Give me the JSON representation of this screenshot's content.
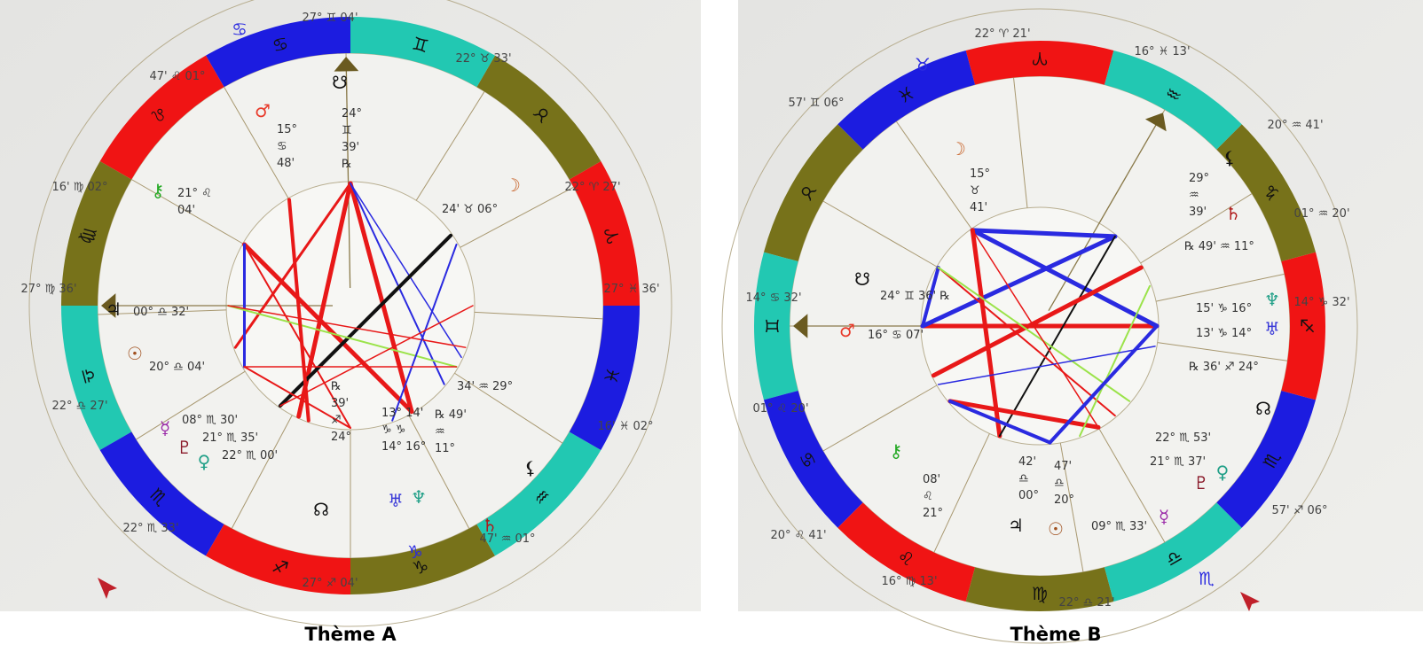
{
  "titles": [
    "Thème A",
    "Thème B"
  ],
  "colors": {
    "fire": "#f01414",
    "earth": "#77721a",
    "air": "#22c8b2",
    "water": "#1c1ce0",
    "background": "#e9e9e6"
  },
  "signs": [
    "♈",
    "♉",
    "♊",
    "♋",
    "♌",
    "♍",
    "♎",
    "♏",
    "♐",
    "♑",
    "♒",
    "♓"
  ],
  "charts": [
    {
      "name": "Thème A",
      "cusps": [
        "27° ♊ 04'",
        "22° ♉ 33'",
        "22° ♈ 27'",
        "27° ♓ 36'",
        "16' ♓ 02°",
        "47' ♒ 01°",
        "27° ♐ 04'",
        "22° ♏ 33'",
        "22° ♎ 27'",
        "27° ♍ 36'",
        "16' ♍ 02°",
        "47' ♌ 01°"
      ],
      "intercepted": [
        "♋",
        "♑"
      ],
      "planets": [
        {
          "glyph": "☋",
          "color": "#111111",
          "lines": [
            "24°",
            "♊",
            "39'",
            "℞"
          ]
        },
        {
          "glyph": "♂",
          "color": "#e83a2a",
          "lines": [
            "15°",
            "♋",
            "48'"
          ]
        },
        {
          "glyph": "⚷",
          "color": "#22a822",
          "lines": [
            "21° ♌",
            "04'"
          ]
        },
        {
          "glyph": "☽",
          "color": "#c8642a",
          "lines": [
            "24' ♉ 06°"
          ]
        },
        {
          "glyph": "♃",
          "color": "#111111",
          "lines": [
            "00° ♎ 32'"
          ]
        },
        {
          "glyph": "☉",
          "color": "#a0501e",
          "lines": [
            "20° ♎ 04'"
          ]
        },
        {
          "glyph": "☿",
          "color": "#9a2aa8",
          "lines": [
            "08° ♏ 30'"
          ]
        },
        {
          "glyph": "♇",
          "color": "#8a1a2a",
          "lines": [
            "21° ♏ 35'"
          ]
        },
        {
          "glyph": "♀",
          "color": "#22a088",
          "lines": [
            "22° ♏ 00'"
          ]
        },
        {
          "glyph": "☊",
          "color": "#111111",
          "lines": [
            "℞",
            "39'",
            "♐",
            "24°"
          ]
        },
        {
          "glyph": "♅",
          "color": "#3a3ad8",
          "lines": [
            "13° 14'",
            "♑ ♑",
            "14° 16°"
          ]
        },
        {
          "glyph": "♆",
          "color": "#22a088",
          "lines": []
        },
        {
          "glyph": "⚸",
          "color": "#111111",
          "lines": [
            "34' ♒ 29°"
          ]
        },
        {
          "glyph": "♄",
          "color": "#b01818",
          "lines": [
            "℞ 49'",
            "♒",
            "11°"
          ]
        }
      ]
    },
    {
      "name": "Thème B",
      "cusps": [
        "22° ♈ 21'",
        "16° ♓ 13'",
        "20° ♒ 41'",
        "01° ♒ 20'",
        "14° ♑ 32'",
        "57' ♐ 06°",
        "22° ♎ 21'",
        "16° ♍ 13'",
        "20° ♌ 41'",
        "01° ♌ 20'",
        "14° ♋ 32'",
        "57' ♊ 06°"
      ],
      "intercepted": [
        "♉",
        "♏"
      ],
      "planets": [
        {
          "glyph": "☽",
          "color": "#c8642a",
          "lines": [
            "15°",
            "♉",
            "41'"
          ]
        },
        {
          "glyph": "☋",
          "color": "#111111",
          "lines": [
            "24° ♊ 36' ℞"
          ]
        },
        {
          "glyph": "♂",
          "color": "#e83a2a",
          "lines": [
            "16° ♋ 07'"
          ]
        },
        {
          "glyph": "⚷",
          "color": "#22a822",
          "lines": [
            "08'",
            "♌",
            "21°"
          ]
        },
        {
          "glyph": "♃",
          "color": "#111111",
          "lines": [
            "42'",
            "♎",
            "00°"
          ]
        },
        {
          "glyph": "☉",
          "color": "#a0501e",
          "lines": [
            "47'",
            "♎",
            "20°"
          ]
        },
        {
          "glyph": "☿",
          "color": "#9a2aa8",
          "lines": [
            "09° ♏ 33'"
          ]
        },
        {
          "glyph": "♇",
          "color": "#8a1a2a",
          "lines": [
            "21° ♏ 37'"
          ]
        },
        {
          "glyph": "♀",
          "color": "#22a088",
          "lines": [
            "22° ♏ 53'"
          ]
        },
        {
          "glyph": "☊",
          "color": "#111111",
          "lines": [
            "℞ 36' ♐ 24°"
          ]
        },
        {
          "glyph": "♆",
          "color": "#22a088",
          "lines": [
            "15' ♑ 16°"
          ]
        },
        {
          "glyph": "♅",
          "color": "#3a3ad8",
          "lines": [
            "13' ♑ 14°"
          ]
        },
        {
          "glyph": "⚸",
          "color": "#111111",
          "lines": [
            "29°",
            "♒",
            "39'"
          ]
        },
        {
          "glyph": "♄",
          "color": "#b01818",
          "lines": [
            "℞ 49' ♒ 11°"
          ]
        }
      ]
    }
  ]
}
